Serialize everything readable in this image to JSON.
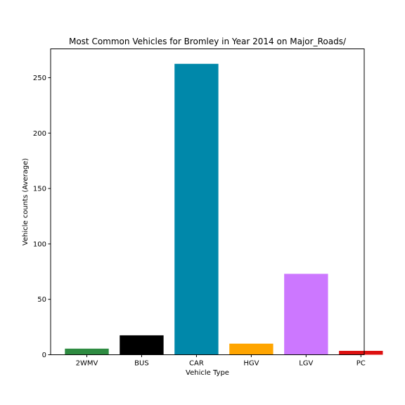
{
  "chart_data": {
    "type": "bar",
    "title": "Most Common Vehicles for Bromley in Year 2014 on Major_Roads/",
    "xlabel": "Vehicle Type",
    "ylabel": "Vehicle counts (Average)",
    "categories": [
      "2WMV",
      "BUS",
      "CAR",
      "HGV",
      "LGV",
      "PC"
    ],
    "values": [
      5.5,
      17.5,
      262.5,
      10,
      73,
      3.5
    ],
    "colors": [
      "#2e8b41",
      "#000000",
      "#0088aa",
      "#ffa500",
      "#cc77ff",
      "#dd1111"
    ],
    "ylim": [
      0,
      276
    ],
    "yticks": [
      0,
      50,
      100,
      150,
      200,
      250
    ],
    "grid": false,
    "legend": "none"
  }
}
